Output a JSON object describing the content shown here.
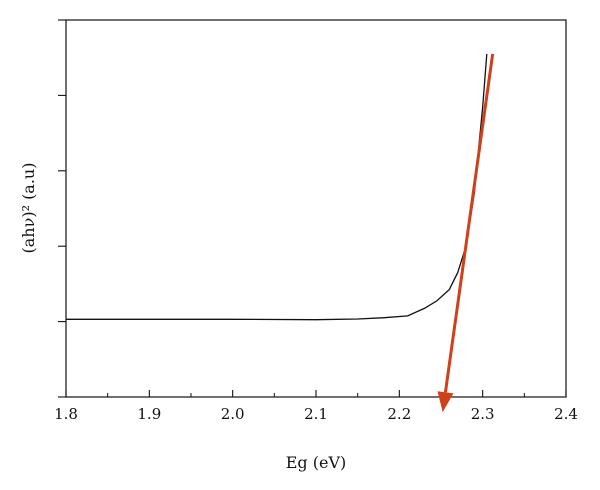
{
  "chart_data": {
    "type": "line",
    "title": "",
    "xlabel": "Eg (eV)",
    "ylabel": "(ahν)² (a.u)",
    "xlim": [
      1.8,
      2.4
    ],
    "ylim": [
      0,
      1
    ],
    "x_ticks": [
      1.8,
      1.9,
      2.0,
      2.1,
      2.2,
      2.3,
      2.4
    ],
    "x_tick_labels": [
      "1.8",
      "1.9",
      "2.0",
      "2.1",
      "2.2",
      "2.3",
      "2.4"
    ],
    "y_ticks": [
      0.0,
      0.2,
      0.4,
      0.6,
      0.8,
      1.0
    ],
    "y_tick_labels_shown": false,
    "grid": false,
    "series": [
      {
        "color": "#111111",
        "x": [
          1.8,
          1.9,
          2.0,
          2.1,
          2.15,
          2.18,
          2.21,
          2.23,
          2.245,
          2.26,
          2.27,
          2.28,
          2.29,
          2.3,
          2.305
        ],
        "y": [
          0.206,
          0.206,
          0.206,
          0.205,
          0.207,
          0.21,
          0.215,
          0.235,
          0.255,
          0.285,
          0.33,
          0.4,
          0.54,
          0.77,
          0.91
        ]
      }
    ],
    "annotations": [
      {
        "type": "arrow",
        "color": "#d0401b",
        "from": [
          2.312,
          0.91
        ],
        "to": [
          2.252,
          -0.04
        ]
      }
    ]
  }
}
